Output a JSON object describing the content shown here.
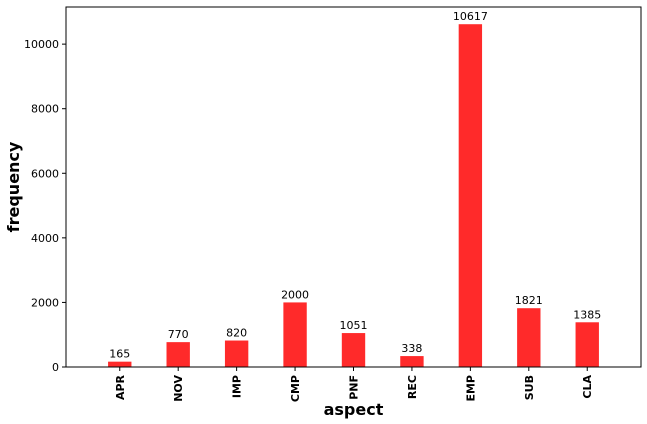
{
  "chart_data": {
    "type": "bar",
    "categories": [
      "APR",
      "NOV",
      "IMP",
      "CMP",
      "PNF",
      "REC",
      "EMP",
      "SUB",
      "CLA"
    ],
    "values": [
      165,
      770,
      820,
      2000,
      1051,
      338,
      10617,
      1821,
      1385
    ],
    "data_labels": [
      "165",
      "770",
      "820",
      "2000",
      "1051",
      "338",
      "10617",
      "1821",
      "1385"
    ],
    "xlabel": "aspect",
    "ylabel": "frequency",
    "ylim": [
      0,
      11150
    ],
    "yticks": [
      0,
      2000,
      4000,
      6000,
      8000,
      10000
    ],
    "ytick_labels": [
      "0",
      "2000",
      "4000",
      "6000",
      "8000",
      "10000"
    ],
    "bar_color": "#ff2a2a",
    "grid": false,
    "legend": "none"
  }
}
